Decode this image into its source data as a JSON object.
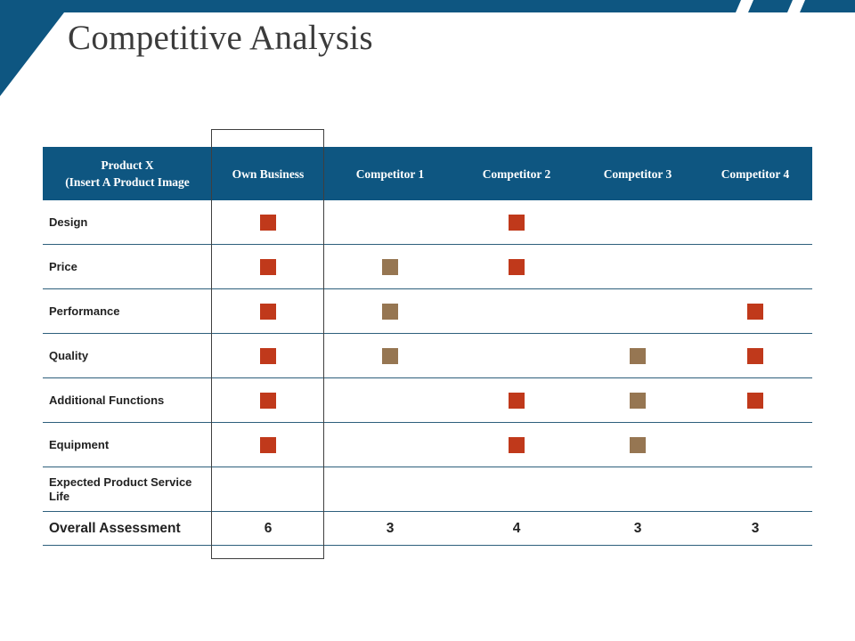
{
  "title": "Competitive Analysis",
  "colors": {
    "header": "#0e5681",
    "accent": "#1a5a82",
    "mark_red": "#c0391b",
    "mark_tan": "#967652"
  },
  "table": {
    "header_line1": "Product X",
    "header_line2": "(Insert A Product Image",
    "columns": [
      "Own Business",
      "Competitor 1",
      "Competitor 2",
      "Competitor 3",
      "Competitor 4"
    ],
    "rows": [
      {
        "label": "Design",
        "marks": [
          "red",
          "",
          "red",
          "",
          ""
        ]
      },
      {
        "label": "Price",
        "marks": [
          "red",
          "tan",
          "red",
          "",
          ""
        ]
      },
      {
        "label": "Performance",
        "marks": [
          "red",
          "tan",
          "",
          "",
          "red"
        ]
      },
      {
        "label": "Quality",
        "marks": [
          "red",
          "tan",
          "",
          "tan",
          "red"
        ]
      },
      {
        "label": "Additional Functions",
        "marks": [
          "red",
          "",
          "red",
          "tan",
          "red"
        ]
      },
      {
        "label": "Equipment",
        "marks": [
          "red",
          "",
          "red",
          "tan",
          ""
        ]
      },
      {
        "label": "Expected Product Service Life",
        "marks": [
          "",
          "",
          "",
          "",
          ""
        ]
      }
    ],
    "total_label": "Overall Assessment",
    "totals": [
      "6",
      "3",
      "4",
      "3",
      "3"
    ]
  }
}
